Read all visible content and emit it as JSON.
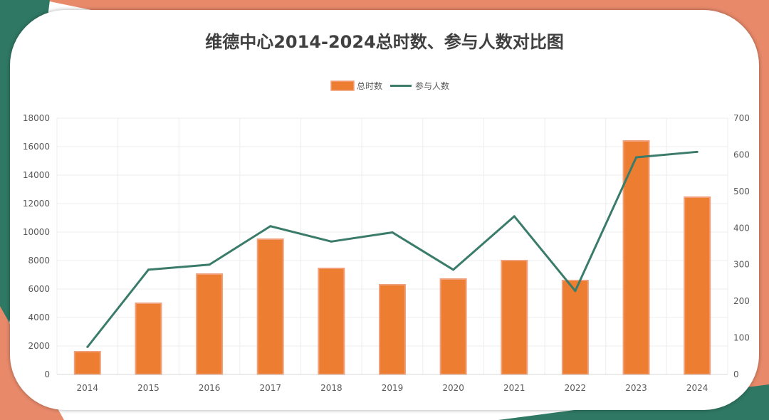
{
  "chart_data": {
    "type": "bar",
    "title": "维德中心2014-2024总时数、参与人数对比图",
    "categories": [
      "2014",
      "2015",
      "2016",
      "2017",
      "2018",
      "2019",
      "2020",
      "2021",
      "2022",
      "2023",
      "2024"
    ],
    "series": [
      {
        "name": "总时数",
        "type": "bar",
        "axis": "left",
        "values": [
          1600,
          5000,
          7050,
          9500,
          7450,
          6300,
          6700,
          8000,
          6600,
          16400,
          12450
        ]
      },
      {
        "name": "参与人数",
        "type": "line",
        "axis": "right",
        "values": [
          75,
          286,
          300,
          405,
          363,
          388,
          286,
          432,
          228,
          593,
          608
        ]
      }
    ],
    "y_left": {
      "min": 0,
      "max": 18000,
      "step": 2000
    },
    "y_right": {
      "min": 0,
      "max": 700,
      "step": 100
    },
    "legend_position": "top-center",
    "grid": true
  },
  "colors": {
    "bar_fill": "#ED7D31",
    "bar_border": "#F0A07A",
    "line": "#3A7B6A",
    "corner_coral": "#E8896A",
    "corner_teal": "#2F7864",
    "grid": "#EDEDED",
    "axis": "#D9D9D9"
  }
}
